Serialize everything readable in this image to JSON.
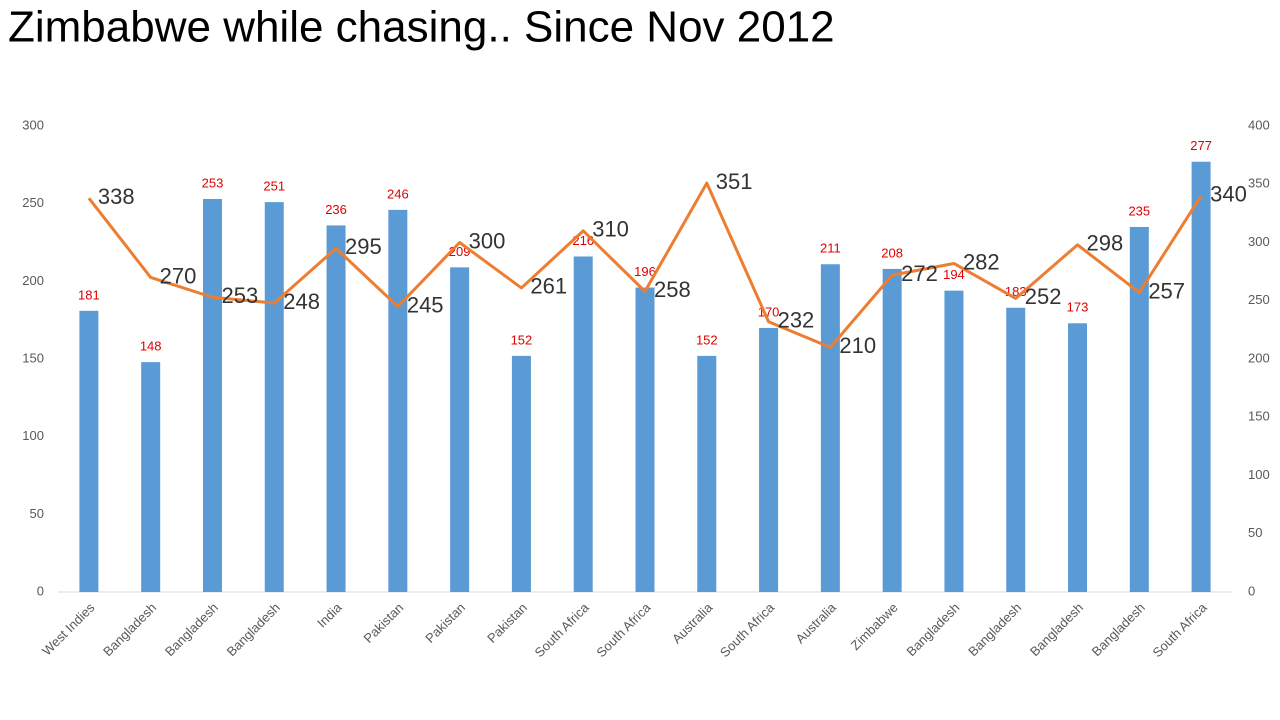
{
  "chart_data": {
    "type": "bar-line",
    "title": "Zimbabwe while chasing.. Since Nov 2012",
    "categories": [
      "West Indies",
      "Bangladesh",
      "Bangladesh",
      "Bangladesh",
      "India",
      "Pakistan",
      "Pakistan",
      "Pakistan",
      "South Africa",
      "South Africa",
      "Australia",
      "South Africa",
      "Australia",
      "Zimbabwe",
      "Bangladesh",
      "Bangladesh",
      "Bangladesh",
      "Bangladesh",
      "South Africa"
    ],
    "series": [
      {
        "type": "bar",
        "color": "#5b9bd5",
        "label_color": "#e00000",
        "values": [
          181,
          148,
          253,
          251,
          236,
          246,
          209,
          152,
          216,
          196,
          152,
          170,
          211,
          208,
          194,
          183,
          173,
          235,
          277
        ]
      },
      {
        "type": "line",
        "axis": "y2",
        "color": "#ed7d31",
        "label_color": "#333333",
        "values": [
          338,
          270,
          253,
          248,
          295,
          245,
          300,
          261,
          310,
          258,
          351,
          232,
          210,
          272,
          282,
          252,
          298,
          257,
          340
        ]
      }
    ],
    "ylim": [
      0,
      300
    ],
    "yticks": [
      0,
      50,
      100,
      150,
      200,
      250,
      300
    ],
    "y2lim": [
      0,
      400
    ],
    "y2ticks": [
      0,
      50,
      100,
      150,
      200,
      250,
      300,
      350,
      400
    ],
    "grid": false
  }
}
